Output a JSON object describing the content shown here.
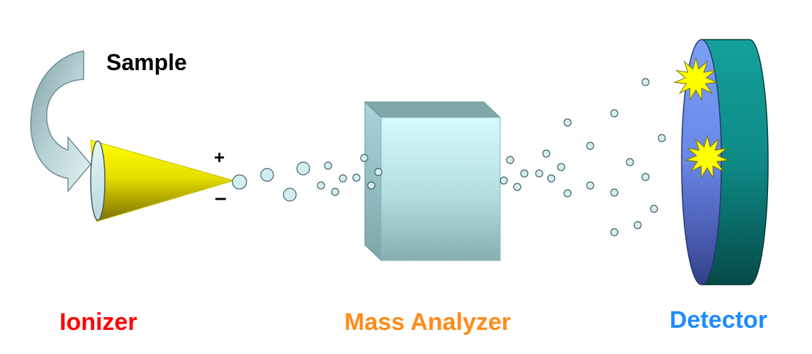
{
  "labels": {
    "sample": "Sample",
    "ionizer": "Ionizer",
    "mass_analyzer": "Mass Analyzer",
    "detector": "Detector",
    "plus": "+",
    "minus": "–"
  },
  "colors": {
    "ionizer": "#ff0000",
    "mass_analyzer": "#ff8c1a",
    "detector": "#1e8cff",
    "cone": "#ffff00",
    "ion": "#d3eef0",
    "analyzer": "#c8f2f5",
    "detector_face": "#6a86e8",
    "detector_rim": "#0e8a86",
    "flash": "#ffff00"
  }
}
